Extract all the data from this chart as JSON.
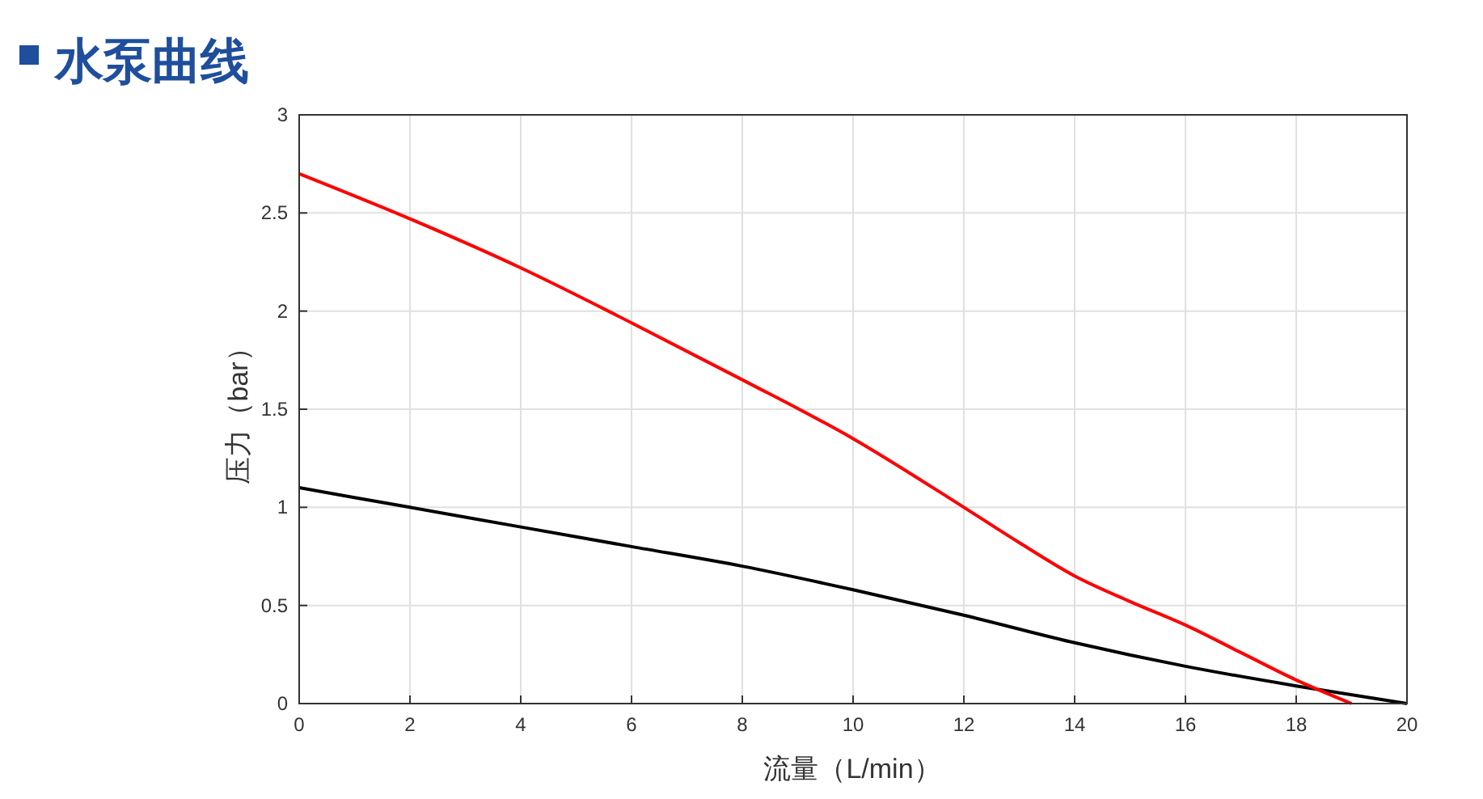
{
  "chart_data": {
    "type": "line",
    "title": "水泵曲线",
    "xlabel": "流量（L/min）",
    "ylabel": "压力（bar）",
    "xlim": [
      0,
      20
    ],
    "ylim": [
      0,
      3
    ],
    "xticks": [
      0,
      2,
      4,
      6,
      8,
      10,
      12,
      14,
      16,
      18,
      20
    ],
    "yticks": [
      0,
      0.5,
      1,
      1.5,
      2,
      2.5,
      3
    ],
    "grid": true,
    "series": [
      {
        "color": "#000000",
        "x": [
          0,
          2,
          4,
          6,
          8,
          10,
          12,
          14,
          16,
          18,
          20
        ],
        "values": [
          1.1,
          1.0,
          0.9,
          0.8,
          0.7,
          0.58,
          0.45,
          0.31,
          0.19,
          0.09,
          0
        ]
      },
      {
        "color": "#ff0000",
        "x": [
          0,
          2,
          4,
          6,
          8,
          10,
          12,
          13,
          14,
          15,
          16,
          17,
          18,
          19
        ],
        "values": [
          2.7,
          2.47,
          2.22,
          1.94,
          1.65,
          1.35,
          1.0,
          0.82,
          0.65,
          0.52,
          0.4,
          0.26,
          0.12,
          0
        ]
      }
    ]
  }
}
